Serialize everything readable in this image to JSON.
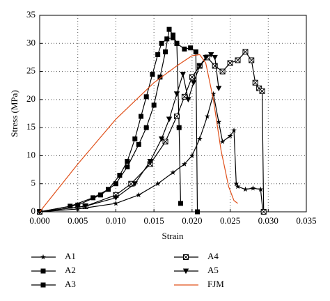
{
  "chart_data": {
    "type": "line",
    "x_label": "Strain",
    "y_label": "Stress (MPa)",
    "xlim": [
      0,
      0.035
    ],
    "ylim": [
      0,
      35
    ],
    "xticks": [
      {
        "value": 0,
        "label": "0.000"
      },
      0.005,
      {
        "value": 0.01,
        "label": "0.010"
      },
      0.015,
      {
        "value": 0.02,
        "label": "0.020"
      },
      0.025,
      {
        "value": 0.03,
        "label": "0.030"
      },
      0.035
    ],
    "yticks": [
      0,
      5,
      10,
      15,
      20,
      25,
      30,
      35
    ],
    "grid": true,
    "series": [
      {
        "name": "A1",
        "color": "#000000",
        "marker": "star",
        "x": [
          0,
          0.005,
          0.01,
          0.013,
          0.0155,
          0.0175,
          0.019,
          0.02,
          0.021,
          0.022,
          0.0228,
          0.0235,
          0.024,
          0.025,
          0.0255,
          0.0258,
          0.026,
          0.027,
          0.028,
          0.029,
          0.0293
        ],
        "values": [
          0,
          0.5,
          1.5,
          3,
          5,
          7,
          8.5,
          10,
          13,
          17,
          21,
          16,
          12.5,
          13.5,
          14.5,
          5,
          4.5,
          4,
          4.2,
          4,
          0
        ]
      },
      {
        "name": "A2",
        "color": "#000000",
        "marker": "square",
        "x": [
          0,
          0.004,
          0.007,
          0.009,
          0.0105,
          0.0115,
          0.0125,
          0.0133,
          0.014,
          0.0148,
          0.0155,
          0.016,
          0.0167,
          0.0175,
          0.018,
          0.0183,
          0.0185
        ],
        "values": [
          0,
          1,
          2.5,
          4,
          6.5,
          9,
          13,
          17,
          20.5,
          24.5,
          28,
          30,
          30.8,
          31,
          30,
          15,
          1.5
        ]
      },
      {
        "name": "A3",
        "color": "#000000",
        "marker": "filledsquare",
        "x": [
          0,
          0.005,
          0.008,
          0.01,
          0.0115,
          0.013,
          0.014,
          0.015,
          0.0158,
          0.0165,
          0.017,
          0.0175,
          0.018,
          0.019,
          0.0198,
          0.0205,
          0.0207
        ],
        "values": [
          0,
          1.2,
          3,
          5,
          8,
          12,
          15,
          19,
          24,
          28.5,
          32.5,
          31.5,
          30,
          29,
          29.2,
          28.5,
          0
        ]
      },
      {
        "name": "A4",
        "color": "#000000",
        "marker": "xbox",
        "x": [
          0,
          0.006,
          0.01,
          0.012,
          0.0145,
          0.0165,
          0.018,
          0.019,
          0.02,
          0.021,
          0.022,
          0.023,
          0.024,
          0.025,
          0.026,
          0.027,
          0.0278,
          0.0283,
          0.0288,
          0.0292,
          0.0294
        ],
        "values": [
          0,
          1,
          3,
          5,
          8.5,
          12.5,
          17,
          20.5,
          24,
          26,
          27.5,
          26,
          25,
          26.5,
          27,
          28.5,
          27,
          23,
          22,
          21.5,
          0
        ]
      },
      {
        "name": "A5",
        "color": "#000000",
        "marker": "triangle",
        "x": [
          0,
          0.006,
          0.01,
          0.0125,
          0.0145,
          0.016,
          0.017,
          0.018,
          0.0188,
          0.0195,
          0.0202,
          0.021,
          0.0218,
          0.0225,
          0.023,
          0.0235
        ],
        "values": [
          0,
          1,
          2.5,
          5,
          9,
          13,
          16.5,
          21,
          24.5,
          20,
          23,
          26,
          27.5,
          28,
          27.5,
          22
        ]
      },
      {
        "name": "FJM",
        "color": "#e0501a",
        "marker": "none",
        "x": [
          0,
          0.005,
          0.01,
          0.015,
          0.018,
          0.02,
          0.021,
          0.0218,
          0.0228,
          0.0238,
          0.0248,
          0.0255,
          0.026
        ],
        "values": [
          0,
          8.5,
          16.5,
          23,
          26,
          27.8,
          28,
          26.5,
          20,
          11,
          4.5,
          2,
          1.5
        ]
      }
    ]
  }
}
